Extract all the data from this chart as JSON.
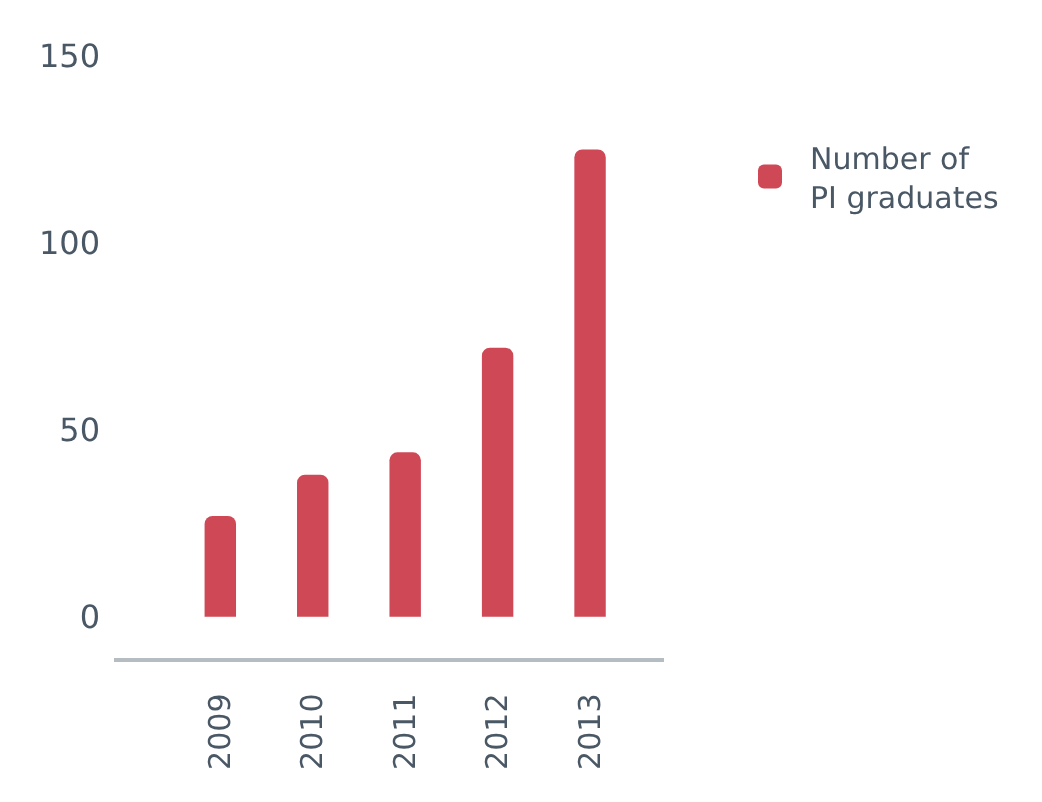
{
  "chart_data": {
    "type": "bar",
    "categories": [
      "2009",
      "2010",
      "2011",
      "2012",
      "2013"
    ],
    "series": [
      {
        "name": "Number of PI graduates",
        "color": "#cf4855",
        "values": [
          27,
          38,
          44,
          72,
          125
        ]
      }
    ],
    "ylim": [
      -11,
      150
    ],
    "yticks": [
      0,
      50,
      100,
      150
    ],
    "grid": false,
    "legend": "right"
  }
}
